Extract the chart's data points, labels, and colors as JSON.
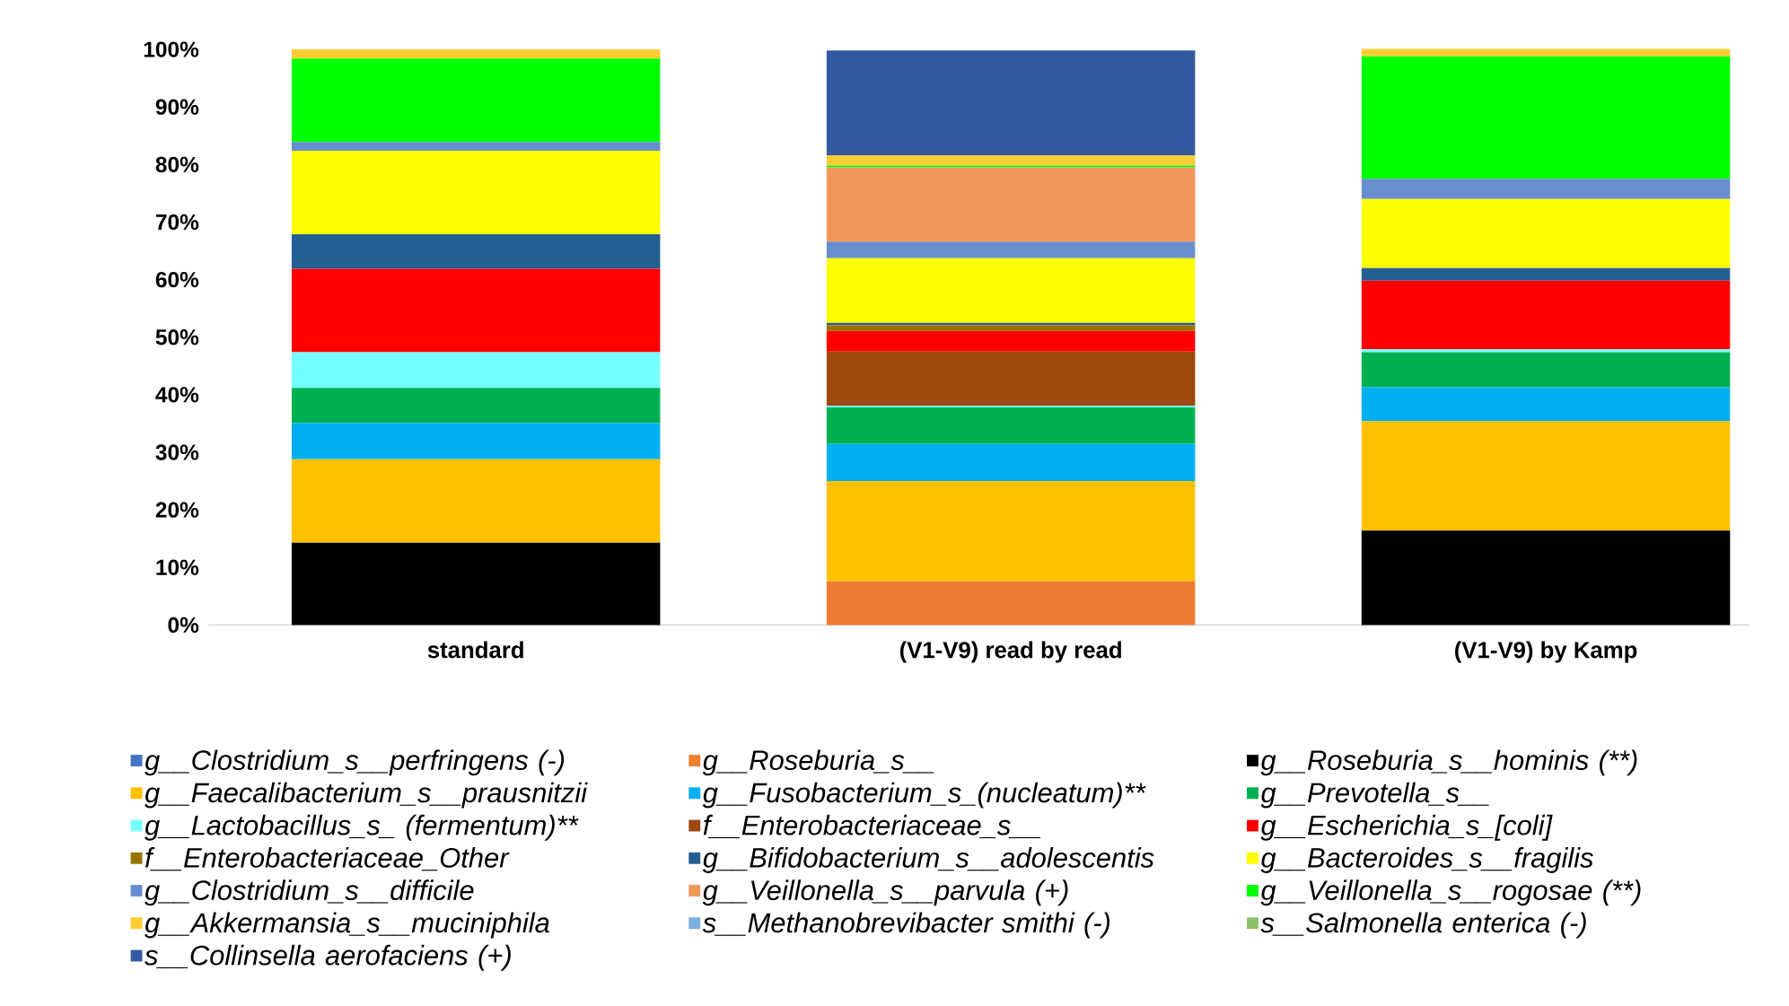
{
  "chart_data": {
    "type": "bar",
    "stacked": true,
    "categories": [
      "standard",
      "(V1-V9) read by read",
      "(V1-V9) by Kamp"
    ],
    "ylim": [
      0,
      100
    ],
    "yticks": [
      {
        "value": 0,
        "label": "0%"
      },
      {
        "value": 10,
        "label": "10%"
      },
      {
        "value": 20,
        "label": "20%"
      },
      {
        "value": 30,
        "label": "30%"
      },
      {
        "value": 40,
        "label": "40%"
      },
      {
        "value": 50,
        "label": "50%"
      },
      {
        "value": 60,
        "label": "60%"
      },
      {
        "value": 70,
        "label": "70%"
      },
      {
        "value": 80,
        "label": "80%"
      },
      {
        "value": 90,
        "label": "90%"
      },
      {
        "value": 100,
        "label": "100%"
      }
    ],
    "grid": false,
    "legend": "bottom",
    "series": [
      {
        "name": "g__Clostridium_s__perfringens (-)",
        "color": "#4472c4",
        "values": [
          0,
          0,
          0
        ]
      },
      {
        "name": "g__Roseburia_s__",
        "color": "#ed7d31",
        "values": [
          0,
          7.6,
          0
        ]
      },
      {
        "name": "g__Roseburia_s__hominis (**)",
        "color": "#000000",
        "values": [
          14.3,
          0,
          16.4
        ]
      },
      {
        "name": "g__Faecalibacterium_s__prausnitzii",
        "color": "#ffc000",
        "values": [
          14.5,
          17.4,
          19.0
        ]
      },
      {
        "name": "g__Fusobacterium_s_(nucleatum)**",
        "color": "#00b0f0",
        "values": [
          6.3,
          6.5,
          5.9
        ]
      },
      {
        "name": "g__Prevotella_s__",
        "color": "#00b050",
        "values": [
          6.1,
          6.3,
          6.1
        ]
      },
      {
        "name": "g__Lactobacillus_s_ (fermentum)**",
        "color": "#75ffff",
        "values": [
          6.2,
          0.3,
          0.5
        ]
      },
      {
        "name": "f__Enterobacteriaceae_s__",
        "color": "#9e480e",
        "values": [
          0,
          9.4,
          0
        ]
      },
      {
        "name": "g__Escherichia_s_[coli]",
        "color": "#ff0000",
        "values": [
          14.5,
          3.6,
          11.9
        ]
      },
      {
        "name": "f__Enterobacteriaceae_Other",
        "color": "#997300",
        "values": [
          0,
          1.0,
          0
        ]
      },
      {
        "name": "g__Bifidobacterium_s__adolescentis",
        "color": "#255e91",
        "values": [
          6.0,
          0.4,
          2.2
        ]
      },
      {
        "name": "g__Bacteroides_s__fragilis",
        "color": "#ffff00",
        "values": [
          14.5,
          11.2,
          12.0
        ]
      },
      {
        "name": "g__Clostridium_s__difficile",
        "color": "#698ed0",
        "values": [
          1.5,
          2.9,
          3.5
        ]
      },
      {
        "name": "g__Veillonella_s__parvula (+)",
        "color": "#f1975a",
        "values": [
          0,
          12.9,
          0
        ]
      },
      {
        "name": "g__Veillonella_s__rogosae (**)",
        "color": "#00ff00",
        "values": [
          14.5,
          0.3,
          21.3
        ]
      },
      {
        "name": "g__Akkermansia_s__muciniphila",
        "color": "#ffcd33",
        "values": [
          1.6,
          1.8,
          1.3
        ]
      },
      {
        "name": "s__Methanobrevibacter smithi (-)",
        "color": "#7cafdd",
        "values": [
          0,
          0,
          0
        ]
      },
      {
        "name": "s__Salmonella enterica (-)",
        "color": "#8cc168",
        "values": [
          0,
          0,
          0
        ]
      },
      {
        "name": "s__Collinsella aerofaciens (+)",
        "color": "#335aa1",
        "values": [
          0,
          18.2,
          0
        ]
      }
    ]
  }
}
